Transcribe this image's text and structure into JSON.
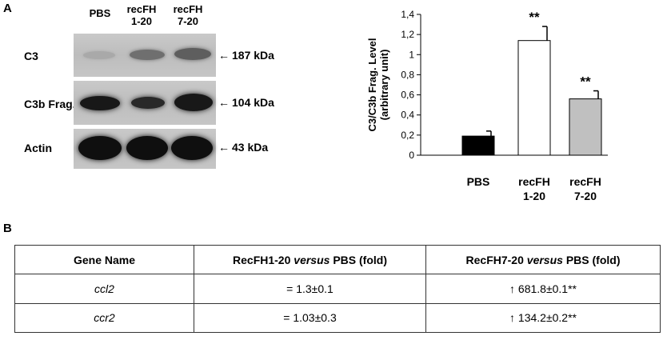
{
  "panel_a": {
    "letter": "A",
    "lanes": [
      "PBS",
      "recFH\n1-20",
      "recFH\n7-20"
    ],
    "rows": [
      {
        "label": "C3",
        "size": "187 kDa",
        "arrow": "←",
        "intensity": [
          0.12,
          0.45,
          0.55
        ]
      },
      {
        "label": "C3b Frag.",
        "size": "104 kDa",
        "arrow": "←",
        "intensity": [
          0.95,
          0.85,
          0.95
        ]
      },
      {
        "label": "Actin",
        "size": "43 kDa",
        "arrow": "←",
        "intensity": [
          1.0,
          1.0,
          1.0
        ]
      }
    ]
  },
  "chart_data": {
    "type": "bar",
    "categories": [
      "PBS",
      "recFH\n1-20",
      "recFH\n7-20"
    ],
    "values": [
      0.19,
      1.14,
      0.56
    ],
    "errors": [
      0.05,
      0.14,
      0.08
    ],
    "significance": [
      "",
      "**",
      "**"
    ],
    "colors": [
      "#000000",
      "#ffffff",
      "#c0c0c0"
    ],
    "ylabel": "C3/C3b Frag. Level\n(arbitrary unit)",
    "ylim": [
      0,
      1.4
    ],
    "yticks": [
      "0",
      "0,2",
      "0,4",
      "0,6",
      "0,8",
      "1",
      "1,2",
      "1,4"
    ],
    "grid": false
  },
  "panel_b": {
    "letter": "B",
    "headers": [
      {
        "pre": "Gene Name",
        "em": "",
        "post": ""
      },
      {
        "pre": "RecFH1-20 ",
        "em": "versus",
        "post": " PBS (fold)"
      },
      {
        "pre": "RecFH7-20 ",
        "em": "versus",
        "post": " PBS (fold)"
      }
    ],
    "rows": [
      {
        "gene": "ccl2",
        "fh1": "= 1.3±0.1",
        "fh7_arrow": "↑",
        "fh7": " 681.8±0.1**"
      },
      {
        "gene": "ccr2",
        "fh1": "= 1.03±0.3",
        "fh7_arrow": "↑",
        "fh7": " 134.2±0.2**"
      }
    ]
  }
}
